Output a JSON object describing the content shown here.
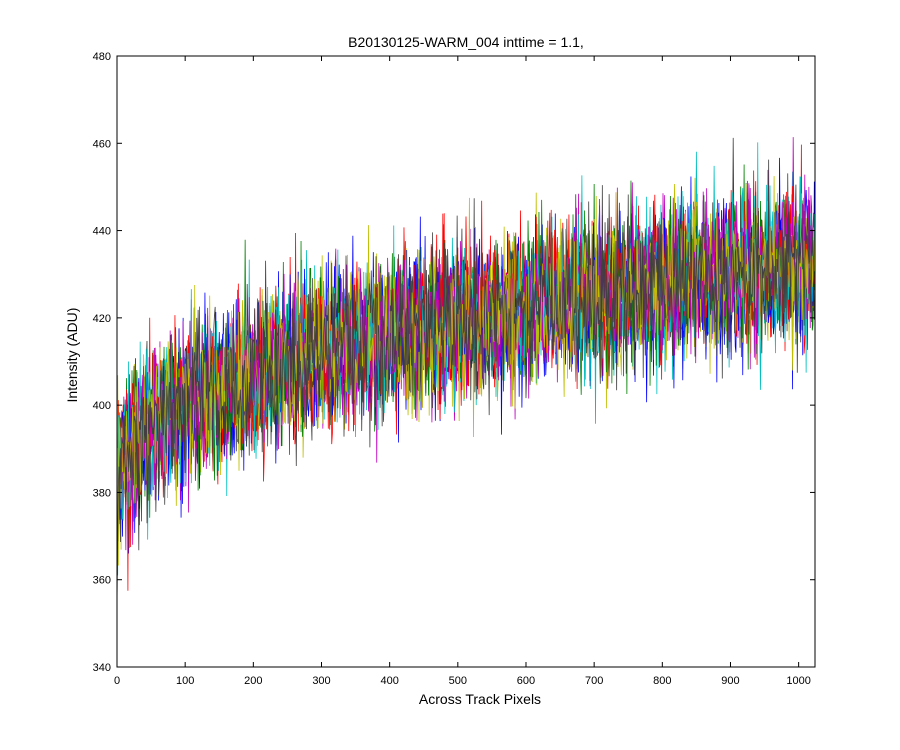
{
  "chart_data": {
    "type": "line",
    "title": "B20130125-WARM_004 inttime = 1.1,",
    "xlabel": "Across Track Pixels",
    "ylabel": "Intensity (ADU)",
    "xlim": [
      0,
      1024
    ],
    "ylim": [
      340,
      480
    ],
    "xticks": [
      0,
      100,
      200,
      300,
      400,
      500,
      600,
      700,
      800,
      900,
      1000
    ],
    "yticks": [
      340,
      360,
      380,
      400,
      420,
      440,
      460,
      480
    ],
    "grid": false,
    "legend": "none",
    "series_colors": [
      "#0000ff",
      "#008000",
      "#ff0000",
      "#00bfbf",
      "#bf00bf",
      "#bfbf00",
      "#404040"
    ],
    "trend": {
      "x": [
        0,
        10,
        50,
        100,
        200,
        300,
        400,
        500,
        600,
        700,
        800,
        900,
        1000,
        1023
      ],
      "y": [
        378,
        388,
        396,
        400,
        407,
        412,
        416,
        419,
        422,
        425,
        428,
        430,
        432,
        433
      ]
    },
    "noise_amplitude": 11,
    "x_max": 1023
  }
}
